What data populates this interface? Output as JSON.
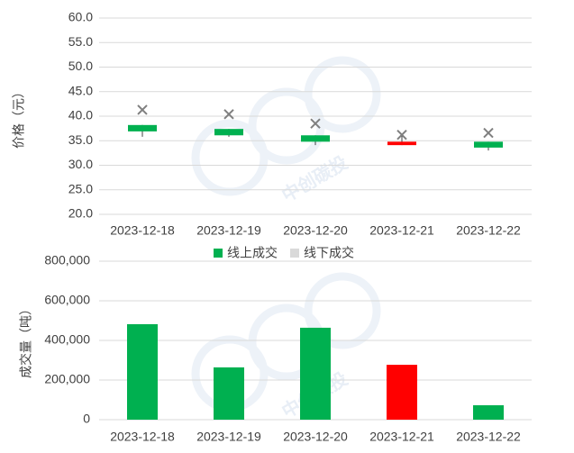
{
  "watermark": "中创碳投",
  "chart_data": [
    {
      "type": "candlestick",
      "y_label": "价格（元）",
      "categories": [
        "2023-12-18",
        "2023-12-19",
        "2023-12-20",
        "2023-12-21",
        "2023-12-22"
      ],
      "ylim": [
        20,
        60
      ],
      "yticks": [
        {
          "value": 20,
          "label": "20.0"
        },
        {
          "value": 25,
          "label": "25.0"
        },
        {
          "value": 30,
          "label": "30.0"
        },
        {
          "value": 35,
          "label": "35.0"
        },
        {
          "value": 40,
          "label": "40.0"
        },
        {
          "value": 45,
          "label": "45.0"
        },
        {
          "value": 50,
          "label": "50.0"
        },
        {
          "value": 55,
          "label": "55.0"
        },
        {
          "value": 60,
          "label": "60.0"
        }
      ],
      "grid": true,
      "legend": "bottom",
      "series": [
        {
          "name": "线上成交",
          "color": "#00b050",
          "up_color": "#ff0000",
          "down_color": "#00b050",
          "open": [
            38.2,
            37.4,
            36.1,
            34.1,
            34.8
          ],
          "high": [
            38.2,
            37.4,
            36.1,
            36.0,
            34.8
          ],
          "low": [
            35.8,
            35.8,
            34.1,
            34.1,
            33.0
          ],
          "close": [
            36.9,
            36.1,
            34.8,
            34.8,
            33.6
          ]
        },
        {
          "name": "线下成交",
          "color": "#d9d9d9",
          "marker_color": "#7f7f7f",
          "values": [
            41.3,
            40.4,
            38.5,
            36.2,
            36.6
          ]
        }
      ]
    },
    {
      "type": "bar",
      "y_label": "成交量（吨）",
      "categories": [
        "2023-12-18",
        "2023-12-19",
        "2023-12-20",
        "2023-12-21",
        "2023-12-22"
      ],
      "ylim": [
        0,
        800000
      ],
      "yticks": [
        0,
        {
          "value": 200000,
          "label": "200,000"
        },
        {
          "value": 400000,
          "label": "400,000"
        },
        {
          "value": 600000,
          "label": "600,000"
        },
        {
          "value": 800000,
          "label": "800,000"
        }
      ],
      "grid": true,
      "values": [
        482000,
        264000,
        464000,
        277000,
        73000
      ],
      "colors": [
        "#00b050",
        "#00b050",
        "#00b050",
        "#ff0000",
        "#00b050"
      ]
    }
  ]
}
